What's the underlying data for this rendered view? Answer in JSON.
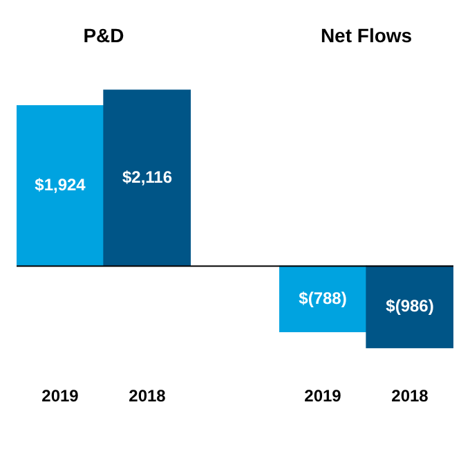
{
  "chart_data": [
    {
      "type": "bar",
      "title": "P&D",
      "categories": [
        "2019",
        "2018"
      ],
      "values": [
        1924,
        2116
      ],
      "colors": [
        "#00a3e0",
        "#005587"
      ],
      "value_labels": [
        "$1,924",
        "$2,116"
      ]
    },
    {
      "type": "bar",
      "title": "Net Flows",
      "categories": [
        "2019",
        "2018"
      ],
      "values": [
        -788,
        -986
      ],
      "colors": [
        "#00a3e0",
        "#005587"
      ],
      "value_labels": [
        "$(788)",
        "$(986)"
      ]
    }
  ]
}
